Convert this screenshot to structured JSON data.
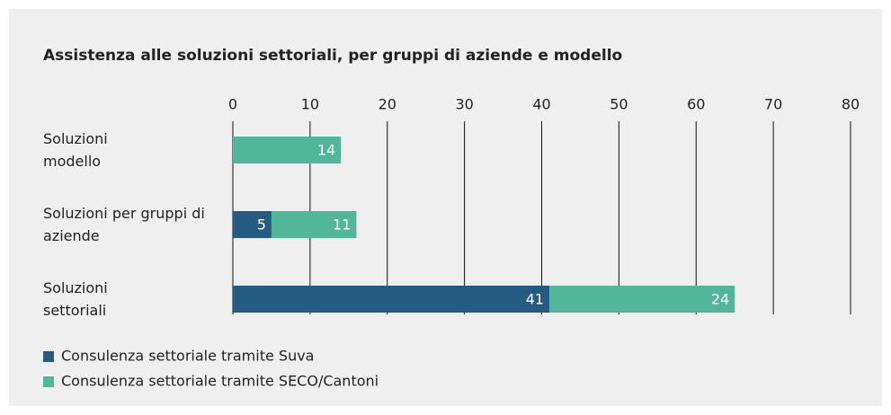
{
  "chart_data": {
    "type": "stacked-barh",
    "title": "Assistenza alle soluzioni settoriali, per gruppi di aziende e modello",
    "categories": [
      "Soluzioni modello",
      "Soluzioni per gruppi di aziende",
      "Soluzioni settoriali"
    ],
    "series": [
      {
        "name": "Consulenza settoriale tramite Suva",
        "color": "#255a82",
        "values": [
          null,
          5,
          41
        ]
      },
      {
        "name": "Consulenza settoriale tramite SECO/Cantoni",
        "color": "#52b798",
        "values": [
          14,
          11,
          24
        ]
      }
    ],
    "xlim": [
      0,
      80
    ],
    "xticks": [
      0,
      10,
      20,
      30,
      40,
      50,
      60,
      70,
      80
    ],
    "grid": true
  }
}
